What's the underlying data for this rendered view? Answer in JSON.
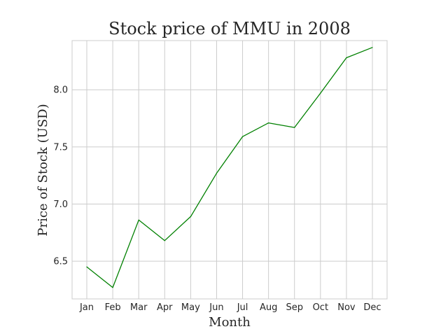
{
  "chart_data": {
    "type": "line",
    "title": "Stock price of MMU in 2008",
    "xlabel": "Month",
    "ylabel": "Price of Stock (USD)",
    "categories": [
      "Jan",
      "Feb",
      "Mar",
      "Apr",
      "May",
      "Jun",
      "Jul",
      "Aug",
      "Sep",
      "Oct",
      "Nov",
      "Dec"
    ],
    "series": [
      {
        "values": [
          6.45,
          6.27,
          6.86,
          6.68,
          6.89,
          7.27,
          7.59,
          7.71,
          7.67,
          7.97,
          8.28,
          8.37
        ],
        "color": "#008000"
      }
    ],
    "yticks": [
      6.5,
      7.0,
      7.5,
      8.0
    ],
    "ylim": [
      6.17,
      8.43
    ],
    "grid": true,
    "legend": "none"
  }
}
